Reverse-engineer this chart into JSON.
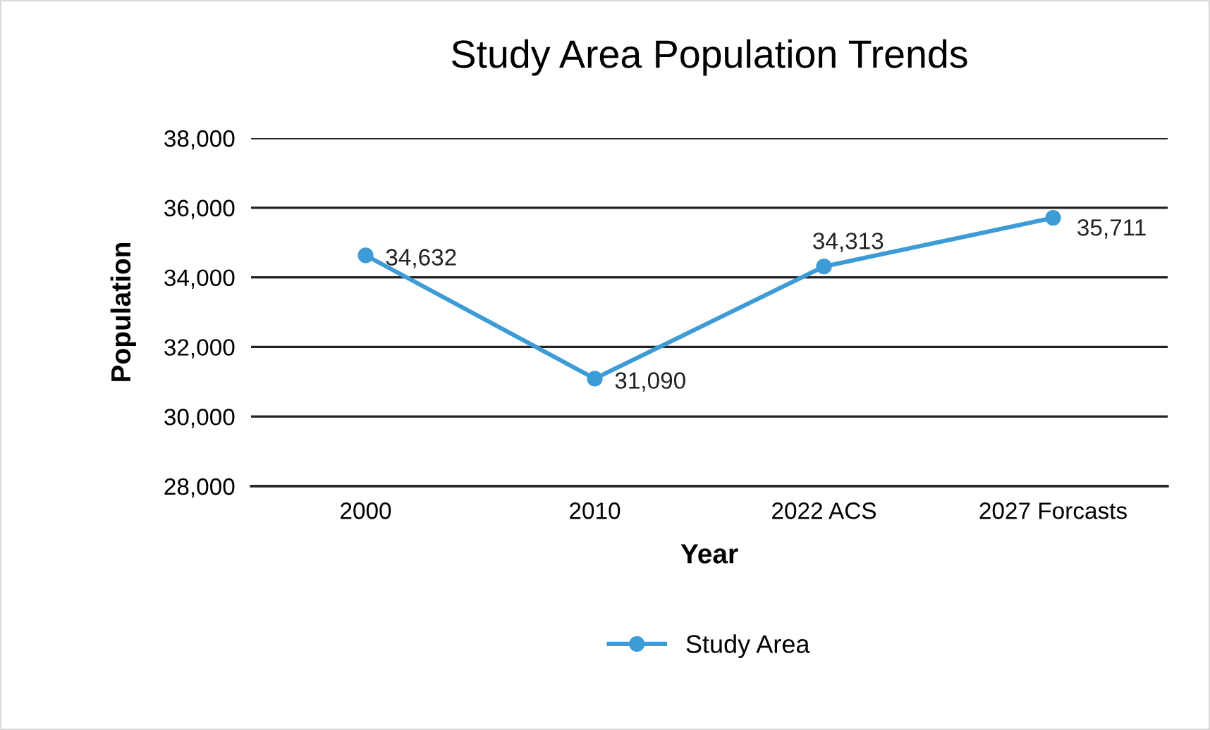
{
  "chart_data": {
    "type": "line",
    "title": "Study Area Population Trends",
    "xlabel": "Year",
    "ylabel": "Population",
    "categories": [
      "2000",
      "2010",
      "2022 ACS",
      "2027 Forcasts"
    ],
    "series": [
      {
        "name": "Study Area",
        "color": "#3d9bd6",
        "values": [
          34632,
          31090,
          34313,
          35711
        ],
        "value_labels": [
          "34,632",
          "31,090",
          "34,313",
          "35,711"
        ]
      }
    ],
    "ylim": [
      28000,
      38000
    ],
    "yticks": [
      {
        "value": 28000,
        "label": "28,000"
      },
      {
        "value": 30000,
        "label": "30,000"
      },
      {
        "value": 32000,
        "label": "32,000"
      },
      {
        "value": 34000,
        "label": "34,000"
      },
      {
        "value": 36000,
        "label": "36,000"
      },
      {
        "value": 38000,
        "label": "38,000"
      }
    ],
    "grid": "y",
    "legend": "bottom",
    "marker": "circle",
    "line_style": "solid"
  }
}
